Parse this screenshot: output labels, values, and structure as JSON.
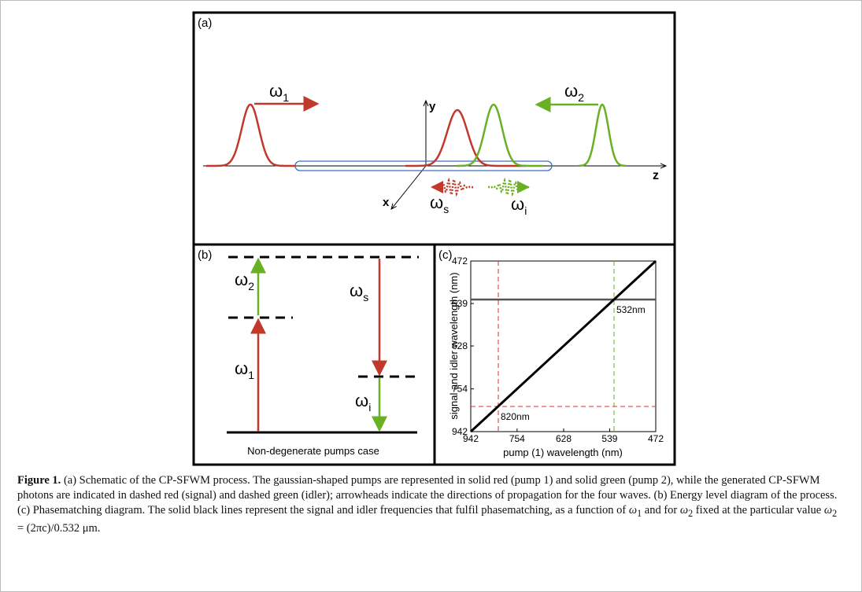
{
  "figure": {
    "panel_a": {
      "label": "(a)",
      "omega": "ω",
      "sub_1": "1",
      "sub_2": "2",
      "sub_s": "s",
      "sub_i": "i",
      "axis_x": "x",
      "axis_y": "y",
      "axis_z": "z"
    },
    "panel_b": {
      "label": "(b)",
      "omega": "ω",
      "sub_1": "1",
      "sub_2": "2",
      "sub_s": "s",
      "sub_i": "i",
      "caption": "Non-degenerate pumps case"
    },
    "panel_c": {
      "label": "(c)",
      "x_label": "pump (1) wavelength (nm)",
      "y_label": "signal and idler wavelength (nm)",
      "xticks": [
        942,
        754,
        628,
        539,
        472
      ],
      "yticks": [
        472,
        539,
        628,
        754,
        942
      ],
      "annotation_532": "532nm",
      "annotation_820": "820nm"
    }
  },
  "caption": {
    "label": "Figure 1.",
    "segments": [
      " (a) Schematic of the CP-SFWM process. The gaussian-shaped pumps are represented in solid red (pump 1) and solid green (pump 2), while the generated CP-SFWM photons are indicated in dashed red (signal) and dashed green (idler); arrowheads indicate the directions of propagation for the four waves. (b) Energy level diagram of the process. (c) Phasematching diagram. The solid black lines represent the signal and idler frequencies that fulfil phasematching, as a function of ",
      "ω",
      "1",
      " and for ",
      "ω",
      "2",
      " fixed at the particular value ",
      "ω",
      "2",
      " = (2πc)/0.532 μm."
    ]
  }
}
